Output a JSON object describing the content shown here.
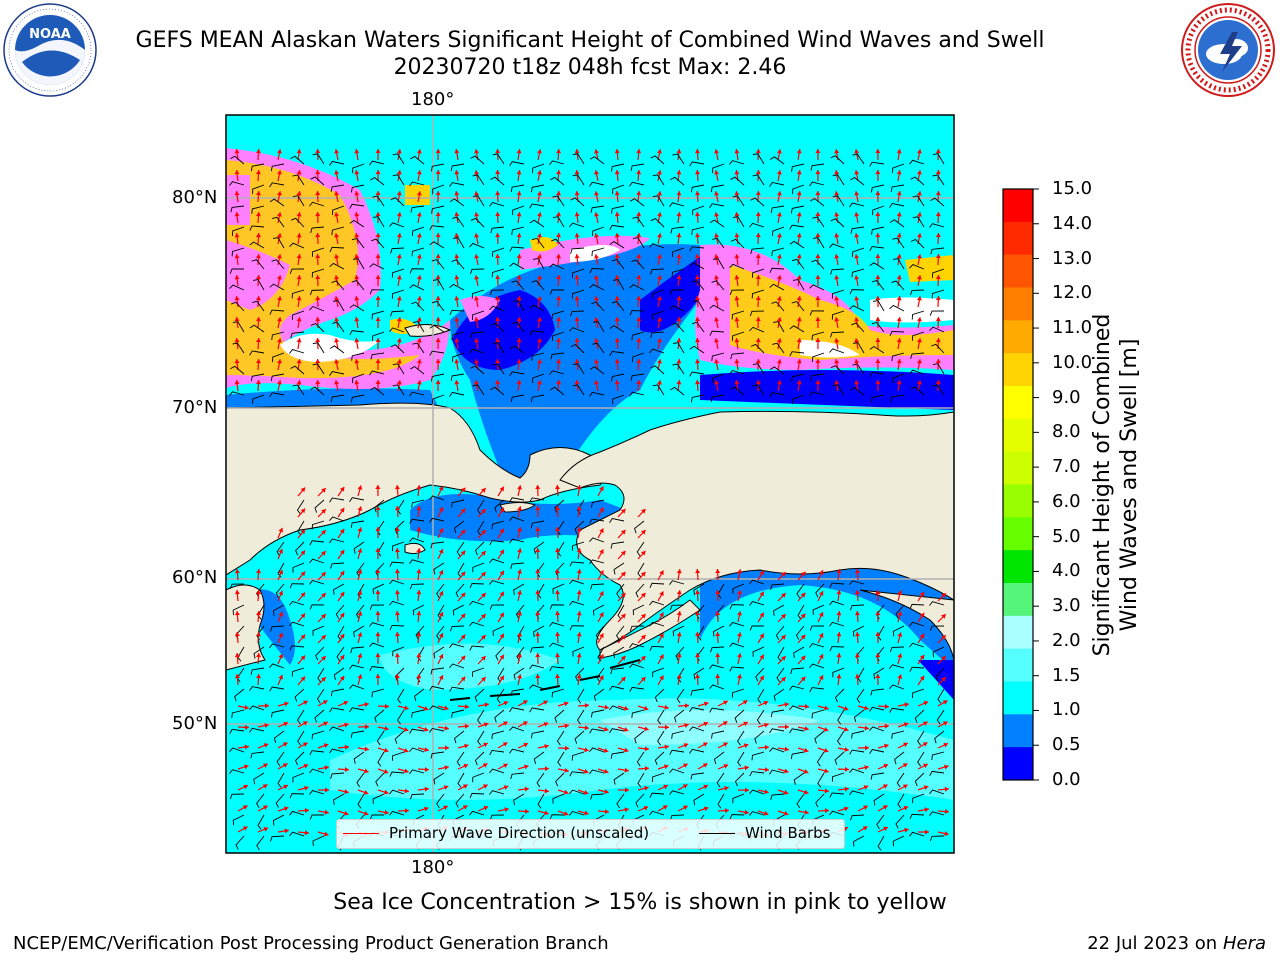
{
  "title_line1": "GEFS MEAN Alaskan Waters Significant Height of Combined Wind Waves and Swell",
  "title_line2": "20230720 t18z 048h fcst   Max: 2.46",
  "logos": {
    "left": "noaa-logo",
    "right": "nws-logo"
  },
  "axes": {
    "lon_labels": {
      "top": "180°",
      "bottom": "180°"
    },
    "lat_labels": [
      "80°N",
      "70°N",
      "60°N",
      "50°N"
    ]
  },
  "colorbar": {
    "label": "Significant Height of Combined Wind Waves and Swell [m]",
    "label_line1": "Significant Height of Combined",
    "label_line2": "Wind Waves and Swell [m]",
    "ticks": [
      "15.0",
      "14.0",
      "13.0",
      "12.0",
      "11.0",
      "10.0",
      "9.0",
      "8.0",
      "7.0",
      "6.0",
      "5.0",
      "4.0",
      "3.0",
      "2.0",
      "1.5",
      "1.0",
      "0.5",
      "0.0"
    ],
    "colors_top_to_bottom": [
      "#ff0000",
      "#ff2a00",
      "#ff5500",
      "#ff7f00",
      "#ffaa00",
      "#ffd400",
      "#ffff00",
      "#e6ff00",
      "#ccff00",
      "#99ff00",
      "#66ff00",
      "#00e600",
      "#55f57a",
      "#aaffff",
      "#55ffff",
      "#00ffff",
      "#0080ff",
      "#0000ff"
    ]
  },
  "legend": {
    "wave_label": "Primary Wave Direction (unscaled)",
    "wind_label": "Wind Barbs",
    "wave_color": "#ff0000",
    "wind_color": "#000000"
  },
  "caption": "Sea Ice Concentration > 15% is shown in pink to yellow",
  "footer_left": "NCEP/EMC/Verification Post Processing Product Generation Branch",
  "footer_right_prefix": "22 Jul 2023 on ",
  "footer_right_host": "Hera",
  "colors": {
    "land": "#efedda",
    "grid": "#b0b0b0"
  }
}
